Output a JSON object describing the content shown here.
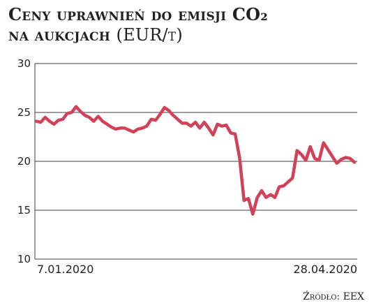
{
  "chart_data": {
    "type": "line",
    "title_line1": "Ceny uprawnień do emisji CO₂",
    "title_line2_main": "na aukcjach",
    "title_line2_unit": "(EUR/t)",
    "ylim": [
      10,
      30
    ],
    "yticks": [
      "10",
      "15",
      "20",
      "25",
      "30"
    ],
    "x_start_label": "7.01.2020",
    "x_end_label": "28.04.2020",
    "grid": true,
    "line_color": "#d2415a",
    "grid_color": "#3c3c3c",
    "series": [
      {
        "values": [
          24.1,
          24.0,
          24.5,
          24.1,
          23.8,
          24.2,
          24.3,
          24.9,
          25.0,
          25.6,
          25.1,
          24.7,
          24.5,
          24.1,
          24.6,
          24.1,
          23.8,
          23.5,
          23.3,
          23.4,
          23.4,
          23.2,
          23.0,
          23.3,
          23.4,
          23.6,
          24.3,
          24.2,
          24.8,
          25.5,
          25.2,
          24.7,
          24.3,
          23.9,
          23.9,
          23.6,
          24.0,
          23.4,
          24.0,
          23.4,
          22.7,
          23.8,
          23.6,
          23.7,
          22.9,
          22.8,
          20.4,
          16.0,
          16.2,
          14.6,
          16.3,
          17.0,
          16.3,
          16.6,
          16.3,
          17.4,
          17.5,
          17.9,
          18.3,
          21.1,
          20.7,
          20.1,
          21.5,
          20.3,
          20.1,
          21.9,
          21.2,
          20.5,
          19.8,
          20.2,
          20.4,
          20.3,
          19.9
        ]
      }
    ]
  },
  "source": "Źródło: EEX"
}
